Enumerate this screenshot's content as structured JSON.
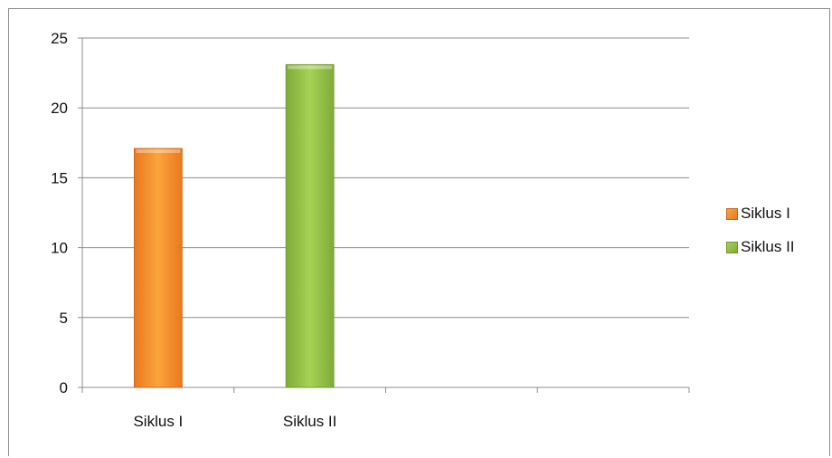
{
  "chart_data": {
    "type": "bar",
    "categories": [
      "Siklus I",
      "Siklus II",
      "",
      ""
    ],
    "series": [
      {
        "name": "Siklus I",
        "values": [
          17.1,
          null,
          null,
          null
        ],
        "color": "#F79A3A"
      },
      {
        "name": "Siklus II",
        "values": [
          null,
          23.1,
          null,
          null
        ],
        "color": "#9BC84A"
      }
    ],
    "title": "",
    "xlabel": "",
    "ylabel": "",
    "ylim": [
      0,
      25
    ],
    "yticks": [
      "0",
      "5",
      "10",
      "15",
      "20",
      "25"
    ],
    "grid": true,
    "legend_position": "right"
  },
  "legend": {
    "items": [
      {
        "label": "Siklus I",
        "color": "#F79A3A"
      },
      {
        "label": "Siklus II",
        "color": "#9BC84A"
      }
    ]
  }
}
